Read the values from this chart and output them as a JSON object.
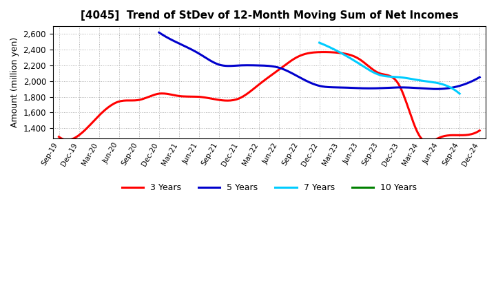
{
  "title": "[4045]  Trend of StDev of 12-Month Moving Sum of Net Incomes",
  "ylabel": "Amount (million yen)",
  "ylim": [
    1270,
    2700
  ],
  "yticks": [
    1400,
    1600,
    1800,
    2000,
    2200,
    2400,
    2600
  ],
  "background_color": "#ffffff",
  "grid_color": "#aaaaaa",
  "series": {
    "3 Years": {
      "color": "#ff0000",
      "data": [
        [
          "Sep-19",
          1290
        ],
        [
          "Dec-19",
          1310
        ],
        [
          "Mar-20",
          1560
        ],
        [
          "Jun-20",
          1740
        ],
        [
          "Sep-20",
          1760
        ],
        [
          "Dec-20",
          1840
        ],
        [
          "Mar-21",
          1810
        ],
        [
          "Jun-21",
          1800
        ],
        [
          "Sep-21",
          1760
        ],
        [
          "Dec-21",
          1780
        ],
        [
          "Mar-22",
          1960
        ],
        [
          "Jun-22",
          2150
        ],
        [
          "Sep-22",
          2320
        ],
        [
          "Dec-22",
          2370
        ],
        [
          "Mar-23",
          2360
        ],
        [
          "Jun-23",
          2280
        ],
        [
          "Sep-23",
          2100
        ],
        [
          "Dec-23",
          1940
        ],
        [
          "Mar-24",
          1300
        ],
        [
          "Jun-24",
          1280
        ],
        [
          "Sep-24",
          1310
        ],
        [
          "Dec-24",
          1370
        ]
      ]
    },
    "5 Years": {
      "color": "#0000cc",
      "data": [
        [
          "Sep-19",
          null
        ],
        [
          "Dec-19",
          null
        ],
        [
          "Mar-20",
          null
        ],
        [
          "Jun-20",
          null
        ],
        [
          "Sep-20",
          null
        ],
        [
          "Dec-20",
          2620
        ],
        [
          "Mar-21",
          2480
        ],
        [
          "Jun-21",
          2350
        ],
        [
          "Sep-21",
          2210
        ],
        [
          "Dec-21",
          2200
        ],
        [
          "Mar-22",
          2200
        ],
        [
          "Jun-22",
          2170
        ],
        [
          "Sep-22",
          2050
        ],
        [
          "Dec-22",
          1940
        ],
        [
          "Mar-23",
          1920
        ],
        [
          "Jun-23",
          1910
        ],
        [
          "Sep-23",
          1910
        ],
        [
          "Dec-23",
          1920
        ],
        [
          "Mar-24",
          1910
        ],
        [
          "Jun-24",
          1900
        ],
        [
          "Sep-24",
          1940
        ],
        [
          "Dec-24",
          2050
        ]
      ]
    },
    "7 Years": {
      "color": "#00ccff",
      "data": [
        [
          "Sep-19",
          null
        ],
        [
          "Dec-19",
          null
        ],
        [
          "Mar-20",
          null
        ],
        [
          "Jun-20",
          null
        ],
        [
          "Sep-20",
          null
        ],
        [
          "Dec-20",
          null
        ],
        [
          "Mar-21",
          null
        ],
        [
          "Jun-21",
          null
        ],
        [
          "Sep-21",
          null
        ],
        [
          "Dec-21",
          null
        ],
        [
          "Mar-22",
          null
        ],
        [
          "Jun-22",
          null
        ],
        [
          "Sep-22",
          null
        ],
        [
          "Dec-22",
          2490
        ],
        [
          "Mar-23",
          2370
        ],
        [
          "Jun-23",
          2220
        ],
        [
          "Sep-23",
          2080
        ],
        [
          "Dec-23",
          2050
        ],
        [
          "Mar-24",
          2010
        ],
        [
          "Jun-24",
          1970
        ],
        [
          "Sep-24",
          1840
        ],
        [
          "Dec-24",
          null
        ]
      ]
    },
    "10 Years": {
      "color": "#008000",
      "data": [
        [
          "Sep-19",
          null
        ],
        [
          "Dec-19",
          null
        ],
        [
          "Mar-20",
          null
        ],
        [
          "Jun-20",
          null
        ],
        [
          "Sep-20",
          null
        ],
        [
          "Dec-20",
          null
        ],
        [
          "Mar-21",
          null
        ],
        [
          "Jun-21",
          null
        ],
        [
          "Sep-21",
          null
        ],
        [
          "Dec-21",
          null
        ],
        [
          "Mar-22",
          null
        ],
        [
          "Jun-22",
          null
        ],
        [
          "Sep-22",
          null
        ],
        [
          "Dec-22",
          null
        ],
        [
          "Mar-23",
          null
        ],
        [
          "Jun-23",
          null
        ],
        [
          "Sep-23",
          null
        ],
        [
          "Dec-23",
          null
        ],
        [
          "Mar-24",
          null
        ],
        [
          "Jun-24",
          null
        ],
        [
          "Sep-24",
          null
        ],
        [
          "Dec-24",
          null
        ]
      ]
    }
  },
  "xtick_labels": [
    "Sep-19",
    "Dec-19",
    "Mar-20",
    "Jun-20",
    "Sep-20",
    "Dec-20",
    "Mar-21",
    "Jun-21",
    "Sep-21",
    "Dec-21",
    "Mar-22",
    "Jun-22",
    "Sep-22",
    "Dec-22",
    "Mar-23",
    "Jun-23",
    "Sep-23",
    "Dec-23",
    "Mar-24",
    "Jun-24",
    "Sep-24",
    "Dec-24"
  ],
  "legend_labels": [
    "3 Years",
    "5 Years",
    "7 Years",
    "10 Years"
  ],
  "legend_colors": [
    "#ff0000",
    "#0000cc",
    "#00ccff",
    "#008000"
  ]
}
